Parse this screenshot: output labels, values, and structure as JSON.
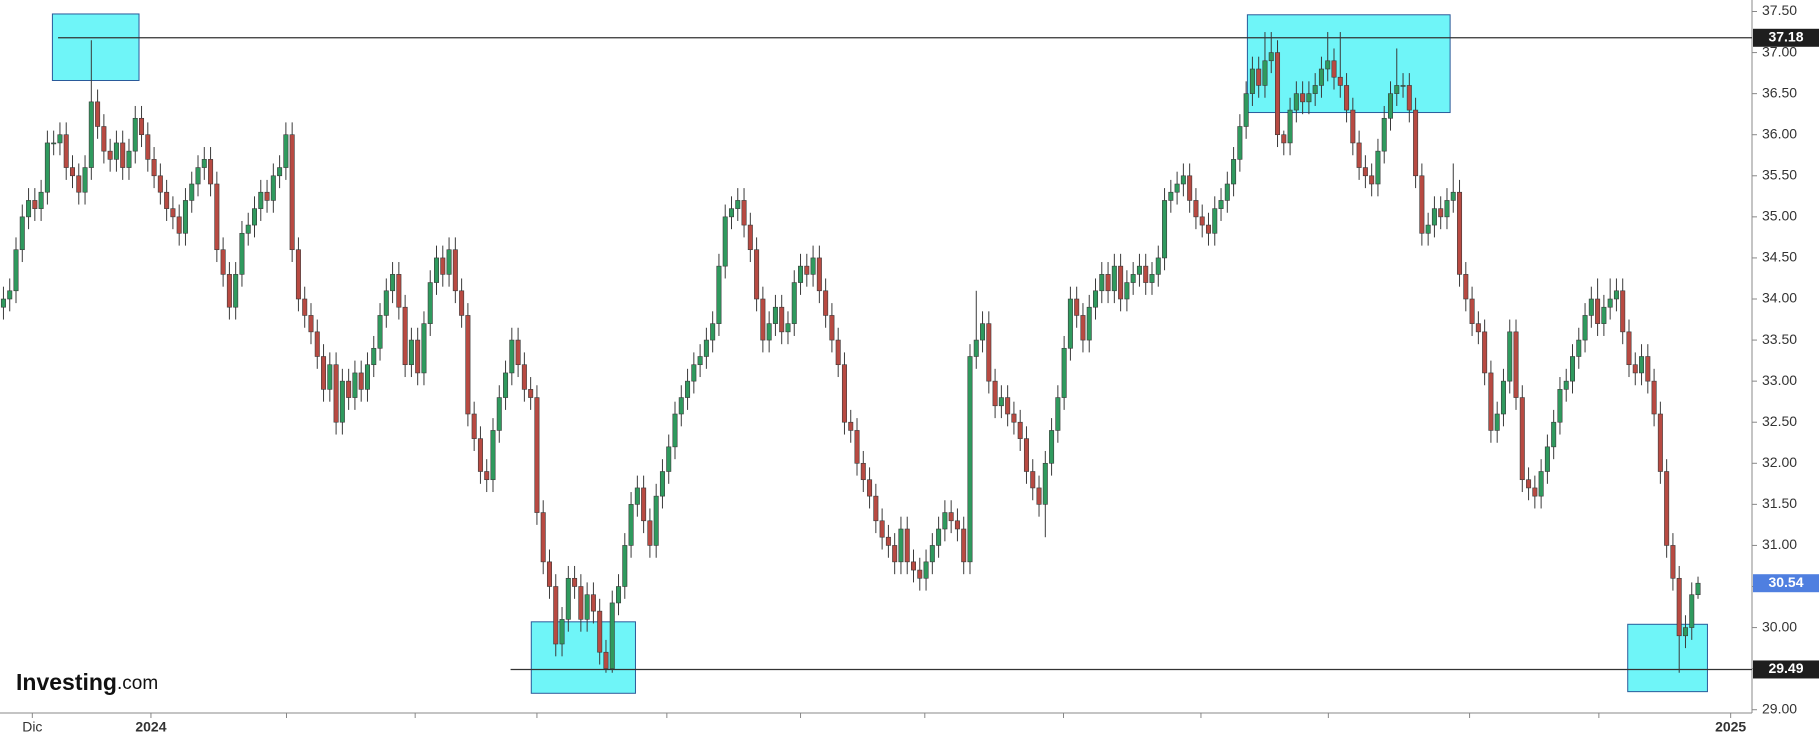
{
  "logo": {
    "name": "Investing",
    "suffix": ".com"
  },
  "chart_data": {
    "type": "candlestick",
    "up_color": "#2f9a5e",
    "down_color": "#b84a42",
    "outline_color": "#3a3a3a",
    "open": [
      33.9,
      34.0,
      34.1,
      34.6,
      35.0,
      35.2,
      35.1,
      35.3,
      35.9,
      35.9,
      36.0,
      35.6,
      35.5,
      35.3,
      35.6,
      36.4,
      36.1,
      35.8,
      35.7,
      35.9,
      35.6,
      35.8,
      36.2,
      36.0,
      35.7,
      35.5,
      35.3,
      35.1,
      35.0,
      34.8,
      35.2,
      35.4,
      35.6,
      35.7,
      35.4,
      34.6,
      34.3,
      33.9,
      34.3,
      34.8,
      34.9,
      35.1,
      35.3,
      35.2,
      35.5,
      35.6,
      36.0,
      34.6,
      34.0,
      33.8,
      33.6,
      33.3,
      32.9,
      33.2,
      32.5,
      33.0,
      32.8,
      33.1,
      32.9,
      33.2,
      33.4,
      33.8,
      34.1,
      34.3,
      33.9,
      33.2,
      33.5,
      33.1,
      33.7,
      34.2,
      34.5,
      34.3,
      34.6,
      34.1,
      33.8,
      32.6,
      32.3,
      31.9,
      31.8,
      32.4,
      32.8,
      33.1,
      33.5,
      33.2,
      32.9,
      32.8,
      31.4,
      30.8,
      30.5,
      29.8,
      30.1,
      30.6,
      30.5,
      30.1,
      30.4,
      30.2,
      29.7,
      29.5,
      30.3,
      30.5,
      31.0,
      31.5,
      31.7,
      31.3,
      31.0,
      31.6,
      31.9,
      32.2,
      32.6,
      32.8,
      33.0,
      33.2,
      33.3,
      33.5,
      33.7,
      34.4,
      35.0,
      35.1,
      35.2,
      34.9,
      34.6,
      34.0,
      33.5,
      33.7,
      33.9,
      33.6,
      33.7,
      34.2,
      34.4,
      34.3,
      34.5,
      34.1,
      33.8,
      33.5,
      33.2,
      32.5,
      32.4,
      32.0,
      31.8,
      31.6,
      31.3,
      31.1,
      31.0,
      30.8,
      31.2,
      30.8,
      30.7,
      30.6,
      30.8,
      31.0,
      31.2,
      31.4,
      31.3,
      31.2,
      30.8,
      33.3,
      33.5,
      33.7,
      33.0,
      32.7,
      32.8,
      32.6,
      32.5,
      32.3,
      31.9,
      31.7,
      31.5,
      32.0,
      32.4,
      32.8,
      33.4,
      34.0,
      33.8,
      33.5,
      33.9,
      34.1,
      34.3,
      34.1,
      34.4,
      34.0,
      34.2,
      34.3,
      34.4,
      34.2,
      34.3,
      34.5,
      35.2,
      35.3,
      35.4,
      35.5,
      35.2,
      35.0,
      34.9,
      34.8,
      35.1,
      35.2,
      35.4,
      35.7,
      36.1,
      36.5,
      36.8,
      36.6,
      36.9,
      37.0,
      36.0,
      35.9,
      36.3,
      36.5,
      36.4,
      36.5,
      36.6,
      36.8,
      36.9,
      36.7,
      36.6,
      36.3,
      35.9,
      35.6,
      35.5,
      35.4,
      35.8,
      36.2,
      36.5,
      36.6,
      36.6,
      36.3,
      35.5,
      34.8,
      34.9,
      35.1,
      35.0,
      35.2,
      35.3,
      34.3,
      34.0,
      33.7,
      33.6,
      33.1,
      32.4,
      32.6,
      33.0,
      33.6,
      32.8,
      31.8,
      31.7,
      31.6,
      31.9,
      32.2,
      32.5,
      32.9,
      33.0,
      33.3,
      33.5,
      33.8,
      34.0,
      33.7,
      33.9,
      34.0,
      34.1,
      33.6,
      33.2,
      33.1,
      33.3,
      33.0,
      32.6,
      31.9,
      31.0,
      30.6,
      29.9,
      30.0,
      30.4
    ],
    "high": [
      34.15,
      34.25,
      34.75,
      35.15,
      35.35,
      35.35,
      35.45,
      36.05,
      36.05,
      36.15,
      36.15,
      35.75,
      35.65,
      35.75,
      37.15,
      36.55,
      36.25,
      35.95,
      36.05,
      36.05,
      35.95,
      36.35,
      36.35,
      36.15,
      35.85,
      35.65,
      35.45,
      35.25,
      35.15,
      35.35,
      35.55,
      35.75,
      35.85,
      35.85,
      35.55,
      34.75,
      34.45,
      34.45,
      34.95,
      35.05,
      35.25,
      35.45,
      35.45,
      35.65,
      35.75,
      36.15,
      36.15,
      34.75,
      34.15,
      33.95,
      33.75,
      33.45,
      33.35,
      33.35,
      33.15,
      33.15,
      33.25,
      33.25,
      33.35,
      33.55,
      33.95,
      34.25,
      34.45,
      34.45,
      34.05,
      33.65,
      33.65,
      33.85,
      34.35,
      34.65,
      34.65,
      34.75,
      34.75,
      34.25,
      33.95,
      32.75,
      32.45,
      32.05,
      32.55,
      32.95,
      33.25,
      33.65,
      33.65,
      33.35,
      33.05,
      32.95,
      31.55,
      30.95,
      30.65,
      30.25,
      30.75,
      30.75,
      30.65,
      30.55,
      30.55,
      30.35,
      29.85,
      30.45,
      30.65,
      31.15,
      31.65,
      31.85,
      31.85,
      31.45,
      31.75,
      32.05,
      32.35,
      32.75,
      32.95,
      33.15,
      33.35,
      33.45,
      33.65,
      33.85,
      34.55,
      35.15,
      35.25,
      35.35,
      35.35,
      35.05,
      34.75,
      34.15,
      33.85,
      34.05,
      34.05,
      33.85,
      34.35,
      34.55,
      34.55,
      34.65,
      34.65,
      34.25,
      33.95,
      33.65,
      33.35,
      32.65,
      32.55,
      32.15,
      31.95,
      31.75,
      31.45,
      31.25,
      31.15,
      31.35,
      31.35,
      30.95,
      30.85,
      30.95,
      31.15,
      31.35,
      31.55,
      31.55,
      31.45,
      31.35,
      33.45,
      34.1,
      33.85,
      33.85,
      33.15,
      32.95,
      32.95,
      32.75,
      32.65,
      32.45,
      32.05,
      31.85,
      32.15,
      32.55,
      32.95,
      33.55,
      34.15,
      34.15,
      33.95,
      34.05,
      34.25,
      34.45,
      34.45,
      34.55,
      34.55,
      34.35,
      34.45,
      34.55,
      34.55,
      34.45,
      34.65,
      35.35,
      35.45,
      35.55,
      35.65,
      35.65,
      35.35,
      35.15,
      35.05,
      35.25,
      35.35,
      35.55,
      35.85,
      36.25,
      36.65,
      36.95,
      36.95,
      37.25,
      37.25,
      37.15,
      36.05,
      36.45,
      36.65,
      36.65,
      36.65,
      36.75,
      36.95,
      37.25,
      37.05,
      37.25,
      36.75,
      36.45,
      36.05,
      35.75,
      35.65,
      35.95,
      36.35,
      36.65,
      37.05,
      36.75,
      36.75,
      36.45,
      35.65,
      35.05,
      35.25,
      35.25,
      35.35,
      35.65,
      35.45,
      34.45,
      34.15,
      33.85,
      33.75,
      33.25,
      32.75,
      33.15,
      33.75,
      33.75,
      32.95,
      31.95,
      31.85,
      32.05,
      32.35,
      32.65,
      33.05,
      33.15,
      33.45,
      33.65,
      33.95,
      34.15,
      34.25,
      34.05,
      34.25,
      34.25,
      34.25,
      33.75,
      33.35,
      33.45,
      33.45,
      33.15,
      32.75,
      32.05,
      31.15,
      30.75,
      30.15,
      30.55,
      30.62
    ],
    "low": [
      33.75,
      33.85,
      33.95,
      34.45,
      34.85,
      34.95,
      34.95,
      35.15,
      35.75,
      35.75,
      35.45,
      35.35,
      35.15,
      35.15,
      35.45,
      35.95,
      35.65,
      35.55,
      35.55,
      35.45,
      35.45,
      35.65,
      35.85,
      35.55,
      35.35,
      35.15,
      34.95,
      34.85,
      34.65,
      34.65,
      35.05,
      35.25,
      35.45,
      35.25,
      34.45,
      34.15,
      33.75,
      33.75,
      34.15,
      34.65,
      34.75,
      34.95,
      35.05,
      35.05,
      35.35,
      35.45,
      34.45,
      33.85,
      33.65,
      33.45,
      33.15,
      32.75,
      32.75,
      32.35,
      32.35,
      32.65,
      32.65,
      32.75,
      32.75,
      33.05,
      33.25,
      33.65,
      33.95,
      33.75,
      33.05,
      33.05,
      32.95,
      32.95,
      33.55,
      34.05,
      34.15,
      34.15,
      33.95,
      33.65,
      32.45,
      32.15,
      31.75,
      31.65,
      31.65,
      32.25,
      32.65,
      32.95,
      33.05,
      32.75,
      32.65,
      31.25,
      30.65,
      30.35,
      29.65,
      29.65,
      29.95,
      30.35,
      29.95,
      29.95,
      30.05,
      29.55,
      29.45,
      29.45,
      30.15,
      30.35,
      30.85,
      31.35,
      31.15,
      30.85,
      30.85,
      31.45,
      31.75,
      32.05,
      32.45,
      32.65,
      32.85,
      33.05,
      33.15,
      33.35,
      33.55,
      34.25,
      34.85,
      34.95,
      34.75,
      34.45,
      33.85,
      33.35,
      33.35,
      33.55,
      33.45,
      33.45,
      33.55,
      34.05,
      34.15,
      34.15,
      33.95,
      33.65,
      33.35,
      33.05,
      32.35,
      32.25,
      31.85,
      31.65,
      31.45,
      31.15,
      30.95,
      30.85,
      30.65,
      30.65,
      30.65,
      30.55,
      30.45,
      30.45,
      30.65,
      30.85,
      31.05,
      31.15,
      31.05,
      30.65,
      30.65,
      33.15,
      33.35,
      32.85,
      32.55,
      32.55,
      32.45,
      32.35,
      32.15,
      31.75,
      31.55,
      31.35,
      31.1,
      31.85,
      32.25,
      32.65,
      33.25,
      33.65,
      33.35,
      33.35,
      33.75,
      33.95,
      33.95,
      33.95,
      33.85,
      33.85,
      34.05,
      34.15,
      34.05,
      34.05,
      34.15,
      34.35,
      35.05,
      35.15,
      35.25,
      35.05,
      34.85,
      34.75,
      34.65,
      34.65,
      34.95,
      35.05,
      35.25,
      35.55,
      35.95,
      36.35,
      36.45,
      36.45,
      36.75,
      35.85,
      35.75,
      35.75,
      36.15,
      36.25,
      36.25,
      36.35,
      36.45,
      36.65,
      36.55,
      36.45,
      36.15,
      35.75,
      35.45,
      35.35,
      35.25,
      35.25,
      35.65,
      36.05,
      36.35,
      36.45,
      36.15,
      35.35,
      34.65,
      34.65,
      34.75,
      34.85,
      34.85,
      35.05,
      34.15,
      33.85,
      33.55,
      33.45,
      32.95,
      32.25,
      32.25,
      32.45,
      32.85,
      32.65,
      31.65,
      31.55,
      31.45,
      31.45,
      31.75,
      32.05,
      32.35,
      32.75,
      32.85,
      33.15,
      33.35,
      33.65,
      33.55,
      33.55,
      33.75,
      33.85,
      33.45,
      33.05,
      32.95,
      32.95,
      32.85,
      32.45,
      31.75,
      30.85,
      30.45,
      29.45,
      29.75,
      29.85,
      30.35
    ],
    "close": [
      34.0,
      34.1,
      34.6,
      35.0,
      35.2,
      35.1,
      35.3,
      35.9,
      35.9,
      36.0,
      35.6,
      35.5,
      35.3,
      35.6,
      36.4,
      36.1,
      35.8,
      35.7,
      35.9,
      35.6,
      35.8,
      36.2,
      36.0,
      35.7,
      35.5,
      35.3,
      35.1,
      35.0,
      34.8,
      35.2,
      35.4,
      35.6,
      35.7,
      35.4,
      34.6,
      34.3,
      33.9,
      34.3,
      34.8,
      34.9,
      35.1,
      35.3,
      35.2,
      35.5,
      35.6,
      36.0,
      34.6,
      34.0,
      33.8,
      33.6,
      33.3,
      32.9,
      33.2,
      32.5,
      33.0,
      32.8,
      33.1,
      32.9,
      33.2,
      33.4,
      33.8,
      34.1,
      34.3,
      33.9,
      33.2,
      33.5,
      33.1,
      33.7,
      34.2,
      34.5,
      34.3,
      34.6,
      34.1,
      33.8,
      32.6,
      32.3,
      31.9,
      31.8,
      32.4,
      32.8,
      33.1,
      33.5,
      33.2,
      32.9,
      32.8,
      31.4,
      30.8,
      30.5,
      29.8,
      30.1,
      30.6,
      30.5,
      30.1,
      30.4,
      30.2,
      29.7,
      29.5,
      30.3,
      30.5,
      31.0,
      31.5,
      31.7,
      31.3,
      31.0,
      31.6,
      31.9,
      32.2,
      32.6,
      32.8,
      33.0,
      33.2,
      33.3,
      33.5,
      33.7,
      34.4,
      35.0,
      35.1,
      35.2,
      34.9,
      34.6,
      34.0,
      33.5,
      33.7,
      33.9,
      33.6,
      33.7,
      34.2,
      34.4,
      34.3,
      34.5,
      34.1,
      33.8,
      33.5,
      33.2,
      32.5,
      32.4,
      32.0,
      31.8,
      31.6,
      31.3,
      31.1,
      31.0,
      30.8,
      31.2,
      30.8,
      30.7,
      30.6,
      30.8,
      31.0,
      31.2,
      31.4,
      31.3,
      31.2,
      30.8,
      33.3,
      33.5,
      33.7,
      33.0,
      32.7,
      32.8,
      32.6,
      32.5,
      32.3,
      31.9,
      31.7,
      31.5,
      32.0,
      32.4,
      32.8,
      33.4,
      34.0,
      33.8,
      33.5,
      33.9,
      34.1,
      34.3,
      34.1,
      34.4,
      34.0,
      34.2,
      34.3,
      34.4,
      34.2,
      34.3,
      34.5,
      35.2,
      35.3,
      35.4,
      35.5,
      35.2,
      35.0,
      34.9,
      34.8,
      35.1,
      35.2,
      35.4,
      35.7,
      36.1,
      36.5,
      36.8,
      36.6,
      36.9,
      37.0,
      36.0,
      35.9,
      36.3,
      36.5,
      36.4,
      36.5,
      36.6,
      36.8,
      36.9,
      36.7,
      36.6,
      36.3,
      35.9,
      35.6,
      35.5,
      35.4,
      35.8,
      36.2,
      36.5,
      36.6,
      36.6,
      36.3,
      35.5,
      34.8,
      34.9,
      35.1,
      35.0,
      35.2,
      35.3,
      34.3,
      34.0,
      33.7,
      33.6,
      33.1,
      32.4,
      32.6,
      33.0,
      33.6,
      32.8,
      31.8,
      31.7,
      31.6,
      31.9,
      32.2,
      32.5,
      32.9,
      33.0,
      33.3,
      33.5,
      33.8,
      34.0,
      33.7,
      33.9,
      34.0,
      34.1,
      33.6,
      33.2,
      33.1,
      33.3,
      33.0,
      32.6,
      31.9,
      31.0,
      30.6,
      29.9,
      30.0,
      30.4,
      30.54
    ],
    "xlim": [
      -0.55,
      278.6
    ],
    "ylim": [
      28.96,
      37.64
    ],
    "yticks": [
      {
        "value": 29,
        "label": "29.00"
      },
      {
        "value": 29.5,
        "label": "29.50"
      },
      {
        "value": 30,
        "label": "30.00"
      },
      {
        "value": 30.5,
        "label": "30.50"
      },
      {
        "value": 31,
        "label": "31.00"
      },
      {
        "value": 31.5,
        "label": "31.50"
      },
      {
        "value": 32,
        "label": "32.00"
      },
      {
        "value": 32.5,
        "label": "32.50"
      },
      {
        "value": 33,
        "label": "33.00"
      },
      {
        "value": 33.5,
        "label": "33.50"
      },
      {
        "value": 34,
        "label": "34.00"
      },
      {
        "value": 34.5,
        "label": "34.50"
      },
      {
        "value": 35,
        "label": "35.00"
      },
      {
        "value": 35.5,
        "label": "35.50"
      },
      {
        "value": 36,
        "label": "36.00"
      },
      {
        "value": 36.5,
        "label": "36.50"
      },
      {
        "value": 37,
        "label": "37.00"
      },
      {
        "value": 37.5,
        "label": "37.50"
      }
    ],
    "xticks": [
      {
        "value": 4.6,
        "label": "Dic"
      },
      {
        "value": 23.5,
        "label": "2024"
      },
      {
        "value": 275.2,
        "label": "2025"
      }
    ],
    "xticks_minor": [
      45.1,
      65.6,
      85.0,
      105.7,
      127.0,
      146.8,
      168.9,
      190.8,
      211.1,
      233.6,
      254.2
    ],
    "price_lines": [
      {
        "value": 37.18,
        "from": 8.7
      },
      {
        "value": 29.49,
        "from": 80.8
      }
    ],
    "last_price": 30.54,
    "last_price_color": "#4f7fe0",
    "zones": [
      {
        "x": [
          7.8,
          21.6
        ],
        "y": [
          36.66,
          37.47
        ]
      },
      {
        "x": [
          84.1,
          100.7
        ],
        "y": [
          29.2,
          30.07
        ]
      },
      {
        "x": [
          198.2,
          230.5
        ],
        "y": [
          36.27,
          37.46
        ]
      },
      {
        "x": [
          258.8,
          271.5
        ],
        "y": [
          29.22,
          30.04
        ]
      }
    ],
    "zone_color": "#6ff5f8"
  }
}
